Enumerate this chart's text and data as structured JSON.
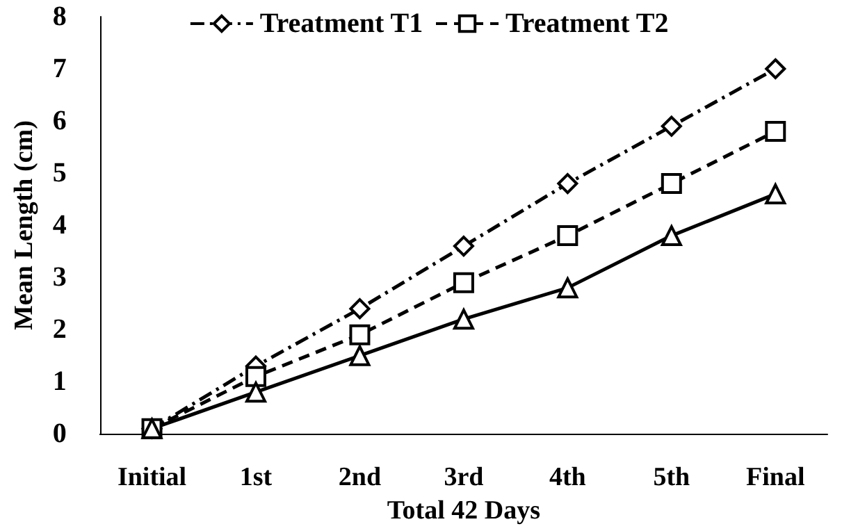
{
  "chart_data": {
    "type": "line",
    "xlabel": "Total 42 Days",
    "ylabel": "Mean Length (cm)",
    "categories": [
      "Initial",
      "1st",
      "2nd",
      "3rd",
      "4th",
      "5th",
      "Final"
    ],
    "series": [
      {
        "name": "Treatment T1",
        "color": "#000000",
        "marker": "diamond",
        "line_style": "dashdot",
        "values": [
          0.1,
          1.3,
          2.4,
          3.6,
          4.8,
          5.9,
          7.0
        ]
      },
      {
        "name": "Treatment T2",
        "color": "#000000",
        "marker": "square",
        "line_style": "dashed",
        "values": [
          0.1,
          1.1,
          1.9,
          2.9,
          3.8,
          4.8,
          5.8
        ]
      },
      {
        "color": "#000000",
        "marker": "triangle",
        "line_style": "solid",
        "values": [
          0.1,
          0.8,
          1.5,
          2.2,
          2.8,
          3.8,
          4.6
        ]
      }
    ],
    "ylim": [
      0,
      8
    ],
    "yticks": [
      0,
      1,
      2,
      3,
      4,
      5,
      6,
      7,
      8
    ],
    "grid": false,
    "legend": "top"
  }
}
